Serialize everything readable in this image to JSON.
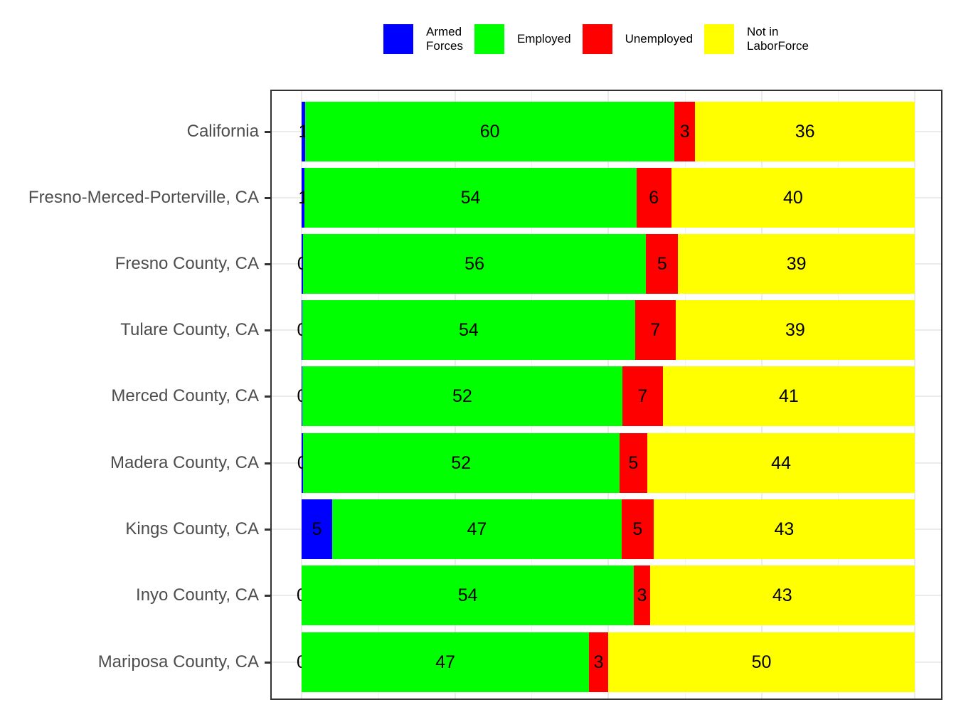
{
  "legend": {
    "items": [
      {
        "label": "Armed\nForces",
        "color": "#0000ff"
      },
      {
        "label": "Employed",
        "color": "#00ff00"
      },
      {
        "label": "Unemployed",
        "color": "#ff0000"
      },
      {
        "label": "Not in\nLaborForce",
        "color": "#ffff00"
      }
    ]
  },
  "chart_data": {
    "type": "bar",
    "orientation": "horizontal",
    "stacked": true,
    "title": "",
    "xlabel": "",
    "ylabel": "",
    "xlim": [
      0,
      100
    ],
    "grid": true,
    "legend_position": "top",
    "categories": [
      "California",
      "Fresno-Merced-Porterville, CA",
      "Fresno County, CA",
      "Tulare County, CA",
      "Merced County, CA",
      "Madera County, CA",
      "Kings County, CA",
      "Inyo County, CA",
      "Mariposa County, CA"
    ],
    "series": [
      {
        "name": "Armed Forces",
        "color": "#0000ff",
        "values": [
          0.6,
          0.5,
          0.2,
          0.1,
          0.1,
          0.2,
          5.0,
          0.0,
          0.0
        ],
        "labels": [
          "1",
          "1",
          "0",
          "0",
          "0",
          "0",
          "5",
          "0",
          "0"
        ]
      },
      {
        "name": "Employed",
        "color": "#00ff00",
        "values": [
          60.2,
          54.1,
          56.0,
          54.3,
          52.2,
          51.6,
          47.2,
          54.2,
          46.9
        ],
        "labels": [
          "60",
          "54",
          "56",
          "54",
          "52",
          "52",
          "47",
          "54",
          "47"
        ]
      },
      {
        "name": "Unemployed",
        "color": "#ff0000",
        "values": [
          3.4,
          5.7,
          5.2,
          6.6,
          6.6,
          4.6,
          5.2,
          2.6,
          3.1
        ],
        "labels": [
          "3",
          "6",
          "5",
          "7",
          "7",
          "5",
          "5",
          "3",
          "3"
        ]
      },
      {
        "name": "Not in LaborForce",
        "color": "#ffff00",
        "values": [
          35.8,
          39.7,
          38.6,
          39.0,
          41.1,
          43.6,
          42.6,
          43.2,
          50.0
        ],
        "labels": [
          "36",
          "40",
          "39",
          "39",
          "41",
          "44",
          "43",
          "43",
          "50"
        ]
      }
    ]
  }
}
